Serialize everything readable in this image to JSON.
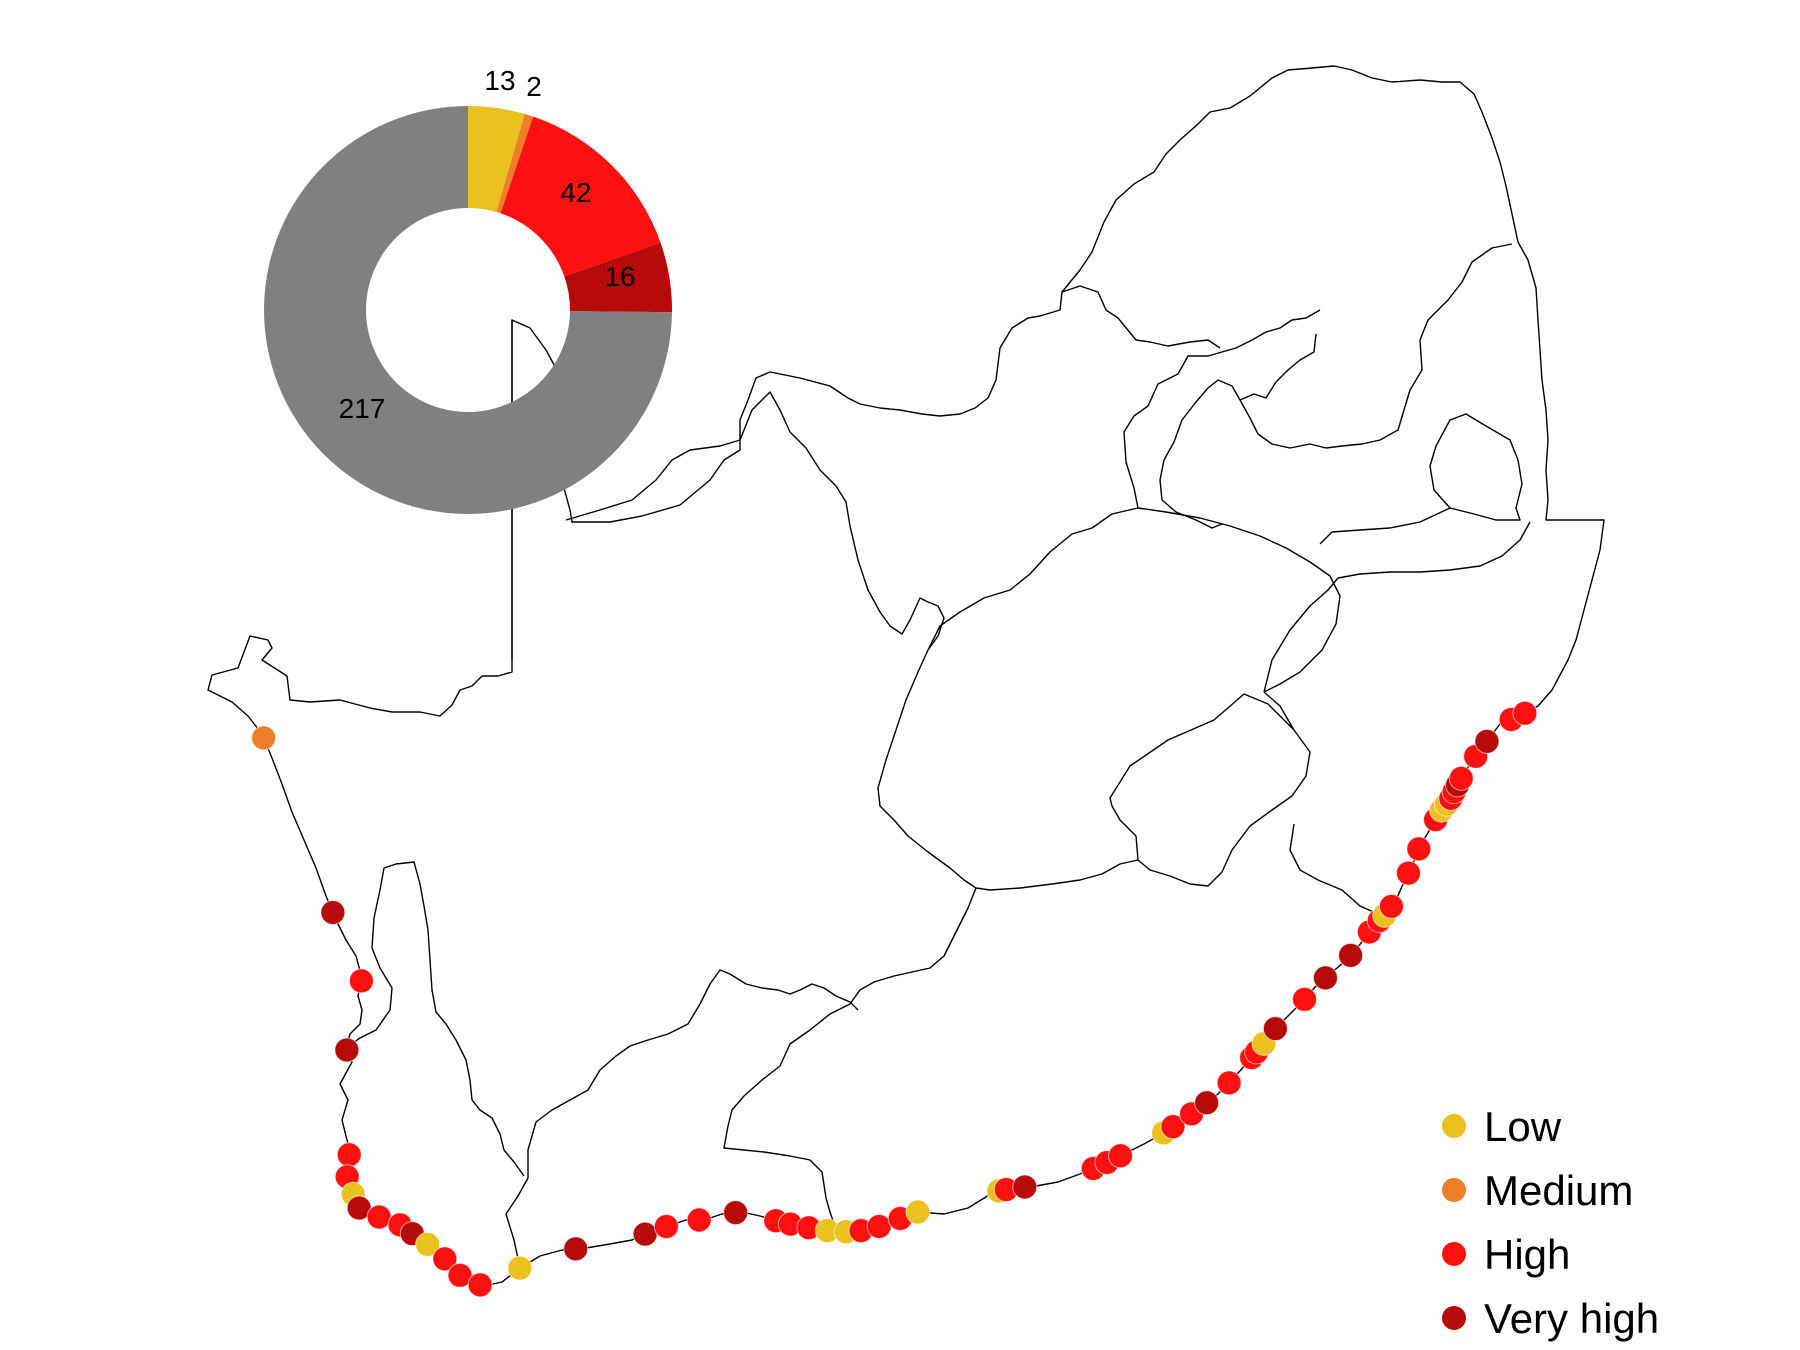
{
  "colors": {
    "low": "#EAC11F",
    "medium": "#EE7F2A",
    "high": "#FF1010",
    "very_high": "#B70B0B",
    "unassessed": "#808080"
  },
  "donut": {
    "segments": [
      {
        "key": "low",
        "value": 13,
        "label": "13"
      },
      {
        "key": "medium",
        "value": 2,
        "label": "2"
      },
      {
        "key": "high",
        "value": 42,
        "label": "42"
      },
      {
        "key": "very_high",
        "value": 16,
        "label": "16"
      },
      {
        "key": "unassessed",
        "value": 217,
        "label": "217"
      }
    ]
  },
  "legend": {
    "items": [
      {
        "key": "low",
        "label": "Low"
      },
      {
        "key": "medium",
        "label": "Medium"
      },
      {
        "key": "high",
        "label": "High"
      },
      {
        "key": "very_high",
        "label": "Very high"
      }
    ]
  },
  "sites": [
    [
      "medium",
      2
    ],
    [
      "very_high",
      7
    ],
    [
      "high",
      9
    ],
    [
      "very_high",
      11
    ],
    [
      "high",
      14
    ],
    [
      "high",
      14.6
    ],
    [
      "low",
      15.1
    ],
    [
      "very_high",
      15.5
    ],
    [
      "high",
      16.1
    ],
    [
      "high",
      16.7
    ],
    [
      "very_high",
      17.1
    ],
    [
      "low",
      17.6
    ],
    [
      "high",
      18.2
    ],
    [
      "high",
      18.8
    ],
    [
      "high",
      19.4
    ],
    [
      "low",
      20.6
    ],
    [
      "very_high",
      22.2
    ],
    [
      "very_high",
      24.1
    ],
    [
      "high",
      24.7
    ],
    [
      "high",
      25.6
    ],
    [
      "very_high",
      26.6
    ],
    [
      "high",
      27.7
    ],
    [
      "high",
      28.1
    ],
    [
      "high",
      28.6
    ],
    [
      "low",
      29.1
    ],
    [
      "low",
      29.6
    ],
    [
      "high",
      30.0
    ],
    [
      "high",
      30.5
    ],
    [
      "high",
      31.1
    ],
    [
      "low",
      31.6
    ],
    [
      "low",
      33.9
    ],
    [
      "high",
      34.1
    ],
    [
      "very_high",
      34.6
    ],
    [
      "high",
      36.5
    ],
    [
      "high",
      36.9
    ],
    [
      "high",
      37.3
    ],
    [
      "low",
      38.6
    ],
    [
      "high",
      38.9
    ],
    [
      "high",
      39.5
    ],
    [
      "very_high",
      40.0
    ],
    [
      "high",
      40.8
    ],
    [
      "high",
      41.7
    ],
    [
      "high",
      41.9
    ],
    [
      "low",
      42.2
    ],
    [
      "very_high",
      42.7
    ],
    [
      "high",
      43.8
    ],
    [
      "very_high",
      44.6
    ],
    [
      "very_high",
      45.5
    ],
    [
      "high",
      46.3
    ],
    [
      "high",
      46.7
    ],
    [
      "low",
      46.9
    ],
    [
      "high",
      47.2
    ],
    [
      "high",
      48.2
    ],
    [
      "high",
      48.9
    ],
    [
      "high",
      49.8
    ],
    [
      "low",
      50.1
    ],
    [
      "low",
      50.3
    ],
    [
      "high",
      50.5
    ],
    [
      "high",
      50.7
    ],
    [
      "very_high",
      50.9
    ],
    [
      "high",
      51.1
    ],
    [
      "high",
      51.8
    ],
    [
      "very_high",
      52.3
    ],
    [
      "high",
      53.2
    ],
    [
      "high",
      53.6
    ]
  ]
}
